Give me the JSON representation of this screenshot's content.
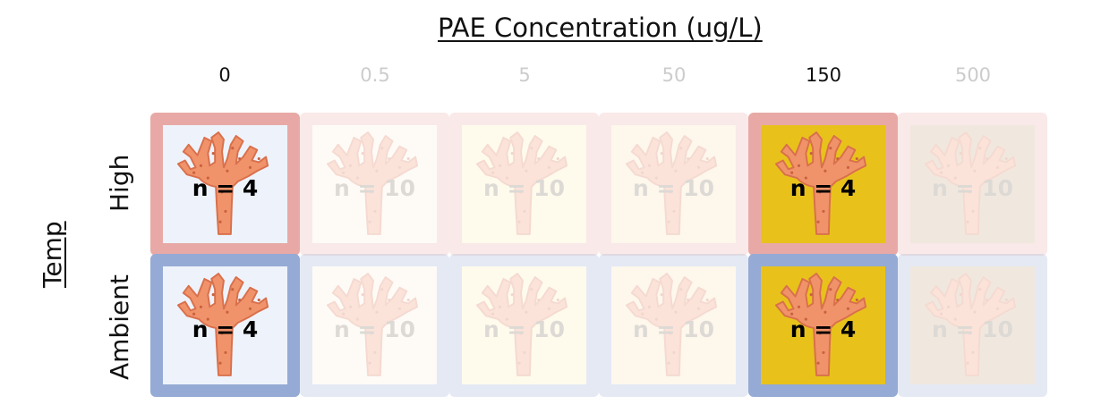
{
  "title": "PAE Concentration (ug/L)",
  "columns": [
    {
      "label": "0",
      "active": true
    },
    {
      "label": "0.5",
      "active": false
    },
    {
      "label": "5",
      "active": false
    },
    {
      "label": "50",
      "active": false
    },
    {
      "label": "150",
      "active": true
    },
    {
      "label": "500",
      "active": false
    }
  ],
  "temp_label": "Temp",
  "rows": [
    {
      "label": "High",
      "border_color": "#e8a9a6",
      "cells": [
        {
          "n_label": "n = 4",
          "fill": "#eef3fb",
          "active": true
        },
        {
          "n_label": "n = 10",
          "fill": "#fdf3e3",
          "active": false
        },
        {
          "n_label": "n = 10",
          "fill": "#fdf0b8",
          "active": false
        },
        {
          "n_label": "n = 10",
          "fill": "#fbe2b6",
          "active": false
        },
        {
          "n_label": "n = 4",
          "fill": "#e8c21b",
          "active": true
        },
        {
          "n_label": "n = 10",
          "fill": "#c6a87f",
          "active": false
        }
      ]
    },
    {
      "label": "Ambient",
      "border_color": "#95aad4",
      "cells": [
        {
          "n_label": "n = 4",
          "fill": "#eef3fb",
          "active": true
        },
        {
          "n_label": "n = 10",
          "fill": "#fdf3e3",
          "active": false
        },
        {
          "n_label": "n = 10",
          "fill": "#fdf0b8",
          "active": false
        },
        {
          "n_label": "n = 10",
          "fill": "#fbe2b6",
          "active": false
        },
        {
          "n_label": "n = 4",
          "fill": "#e8c21b",
          "active": true
        },
        {
          "n_label": "n = 10",
          "fill": "#c6a87f",
          "active": false
        }
      ]
    }
  ],
  "coral_icon": "branching-coral-icon",
  "coral_color": "#f0936b"
}
